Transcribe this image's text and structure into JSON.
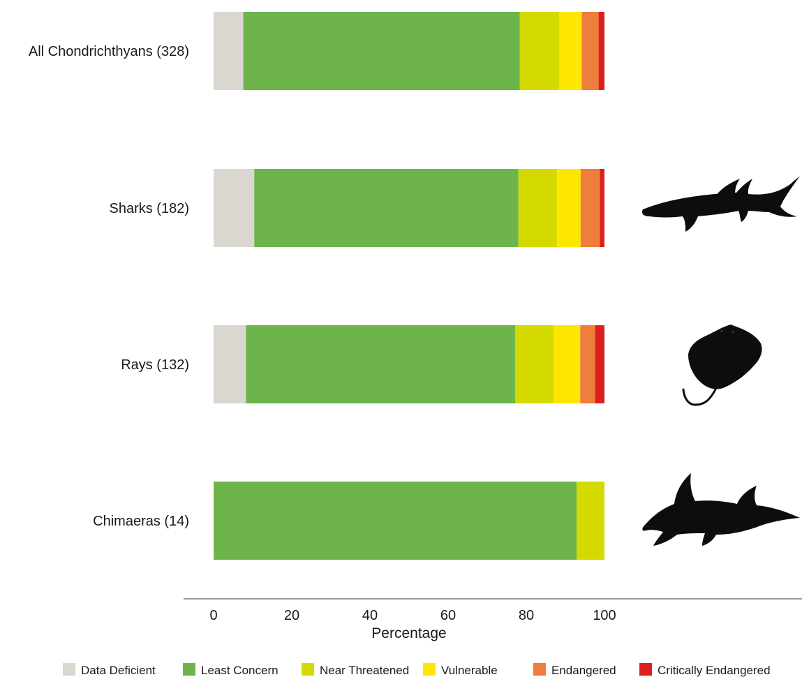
{
  "chart_data": {
    "type": "bar",
    "orientation": "horizontal",
    "stacked": true,
    "title": "",
    "xlabel": "Percentage",
    "ylabel": "",
    "xlim": [
      0,
      100
    ],
    "x_ticks": [
      0,
      20,
      40,
      60,
      80,
      100
    ],
    "grid": false,
    "legend_position": "bottom",
    "categories": [
      "All Chondrichthyans (328)",
      "Sharks (182)",
      "Rays (132)",
      "Chimaeras (14)"
    ],
    "category_icons": [
      "",
      "shark-silhouette-icon",
      "ray-silhouette-icon",
      "chimaera-silhouette-icon"
    ],
    "series": [
      {
        "name": "Data Deficient",
        "color": "#d9d7cf",
        "values": [
          7.6,
          10.4,
          8.3,
          0
        ]
      },
      {
        "name": "Least Concern",
        "color": "#6db54b",
        "values": [
          70.7,
          67.6,
          68.9,
          92.9
        ]
      },
      {
        "name": "Near Threatened",
        "color": "#d4d900",
        "values": [
          10.1,
          9.9,
          9.8,
          7.1
        ]
      },
      {
        "name": "Vulnerable",
        "color": "#fde600",
        "values": [
          5.8,
          6.0,
          6.8,
          0
        ]
      },
      {
        "name": "Endangered",
        "color": "#ef7d3c",
        "values": [
          4.3,
          4.9,
          3.8,
          0
        ]
      },
      {
        "name": "Critically Endangered",
        "color": "#d9221e",
        "values": [
          1.5,
          1.2,
          2.4,
          0
        ]
      }
    ]
  }
}
